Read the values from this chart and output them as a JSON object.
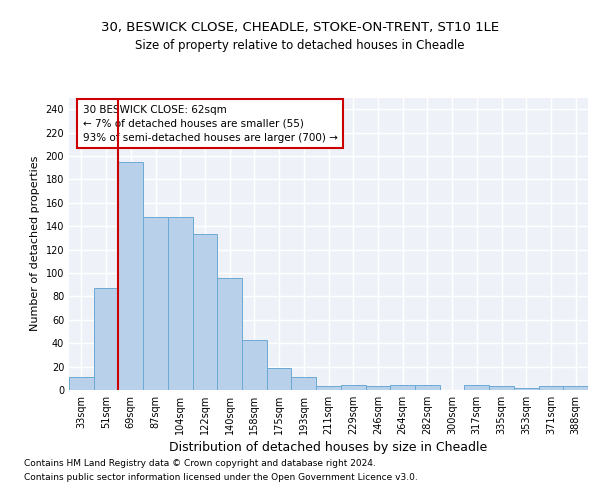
{
  "title1": "30, BESWICK CLOSE, CHEADLE, STOKE-ON-TRENT, ST10 1LE",
  "title2": "Size of property relative to detached houses in Cheadle",
  "xlabel": "Distribution of detached houses by size in Cheadle",
  "ylabel": "Number of detached properties",
  "categories": [
    "33sqm",
    "51sqm",
    "69sqm",
    "87sqm",
    "104sqm",
    "122sqm",
    "140sqm",
    "158sqm",
    "175sqm",
    "193sqm",
    "211sqm",
    "229sqm",
    "246sqm",
    "264sqm",
    "282sqm",
    "300sqm",
    "317sqm",
    "335sqm",
    "353sqm",
    "371sqm",
    "388sqm"
  ],
  "values": [
    11,
    87,
    195,
    148,
    148,
    133,
    96,
    43,
    19,
    11,
    3,
    4,
    3,
    4,
    4,
    0,
    4,
    3,
    2,
    3,
    3
  ],
  "bar_color": "#b8d0ea",
  "bar_edge_color": "#6aaad4",
  "redline_color": "#cc0000",
  "redline_x": 1.5,
  "annotation_text": "30 BESWICK CLOSE: 62sqm\n← 7% of detached houses are smaller (55)\n93% of semi-detached houses are larger (700) →",
  "annotation_box_color": "#ffffff",
  "annotation_box_edge": "#cc0000",
  "footer1": "Contains HM Land Registry data © Crown copyright and database right 2024.",
  "footer2": "Contains public sector information licensed under the Open Government Licence v3.0.",
  "ylim": [
    0,
    250
  ],
  "yticks": [
    0,
    20,
    40,
    60,
    80,
    100,
    120,
    140,
    160,
    180,
    200,
    220,
    240
  ],
  "background_color": "#eef2f8",
  "grid_color": "#ffffff",
  "title1_fontsize": 9.5,
  "title2_fontsize": 8.5,
  "ylabel_fontsize": 8,
  "xlabel_fontsize": 9,
  "tick_fontsize": 7,
  "ann_fontsize": 7.5,
  "footer_fontsize": 6.5
}
